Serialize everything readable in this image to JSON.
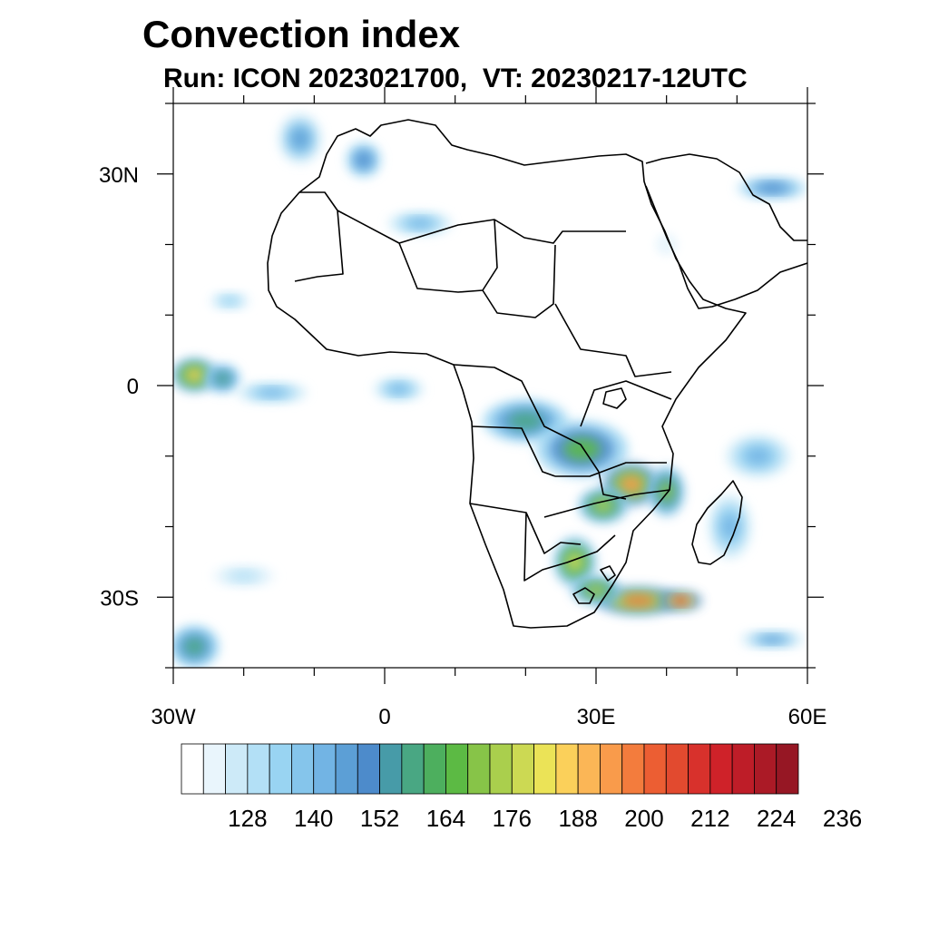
{
  "title": "Convection index",
  "subtitle": "Run: ICON 2023021700,  VT: 20230217-12UTC",
  "map": {
    "projection": "equirectangular",
    "lon_range": [
      -30,
      60
    ],
    "lat_range": [
      -40,
      40
    ],
    "lat_tick_labels": [
      {
        "value": 30,
        "label": "30N"
      },
      {
        "value": 0,
        "label": "0"
      },
      {
        "value": -30,
        "label": "30S"
      }
    ],
    "lon_tick_labels": [
      {
        "value": -30,
        "label": "30W"
      },
      {
        "value": 0,
        "label": "0"
      },
      {
        "value": 30,
        "label": "30E"
      },
      {
        "value": 60,
        "label": "60E"
      }
    ],
    "boundary_color": "#000000",
    "field_name": "convection index",
    "field_regions": [
      {
        "lon": -27,
        "lat": 1.5,
        "rlon": 3.2,
        "rlat": 2.4,
        "level": 0.62
      },
      {
        "lon": -23,
        "lat": 1.0,
        "rlon": 2.5,
        "rlat": 2.0,
        "level": 0.35
      },
      {
        "lon": -16,
        "lat": -1.0,
        "rlon": 5.0,
        "rlat": 1.4,
        "level": 0.2
      },
      {
        "lon": 2,
        "lat": -0.5,
        "rlon": 3.5,
        "rlat": 1.6,
        "level": 0.18
      },
      {
        "lon": -12,
        "lat": 35,
        "rlon": 3.0,
        "rlat": 3.5,
        "level": 0.22
      },
      {
        "lon": -3,
        "lat": 32,
        "rlon": 2.5,
        "rlat": 2.5,
        "level": 0.25
      },
      {
        "lon": 5,
        "lat": 23,
        "rlon": 4.5,
        "rlat": 1.6,
        "level": 0.2
      },
      {
        "lon": 55,
        "lat": 28,
        "rlon": 5.0,
        "rlat": 1.5,
        "level": 0.28
      },
      {
        "lon": -22,
        "lat": 12,
        "rlon": 3.0,
        "rlat": 1.3,
        "level": 0.12
      },
      {
        "lon": 20,
        "lat": -5,
        "rlon": 6.0,
        "rlat": 3.0,
        "level": 0.35
      },
      {
        "lon": 28,
        "lat": -9,
        "rlon": 6.5,
        "rlat": 4.0,
        "level": 0.42
      },
      {
        "lon": 35,
        "lat": -14,
        "rlon": 4.0,
        "rlat": 3.0,
        "level": 0.7
      },
      {
        "lon": 31,
        "lat": -17,
        "rlon": 3.5,
        "rlat": 2.5,
        "level": 0.5
      },
      {
        "lon": 40,
        "lat": -15,
        "rlon": 2.5,
        "rlat": 3.5,
        "level": 0.45
      },
      {
        "lon": 27,
        "lat": -25,
        "rlon": 3.0,
        "rlat": 3.5,
        "level": 0.55
      },
      {
        "lon": 36,
        "lat": -30.5,
        "rlon": 6.0,
        "rlat": 2.0,
        "level": 0.72
      },
      {
        "lon": 42,
        "lat": -30.5,
        "rlon": 3.0,
        "rlat": 1.4,
        "level": 0.85
      },
      {
        "lon": 30,
        "lat": -29,
        "rlon": 3.5,
        "rlat": 2.0,
        "level": 0.5
      },
      {
        "lon": 49,
        "lat": -20,
        "rlon": 3.0,
        "rlat": 4.5,
        "level": 0.2
      },
      {
        "lon": 53,
        "lat": -10,
        "rlon": 4.5,
        "rlat": 3.0,
        "level": 0.2
      },
      {
        "lon": -27,
        "lat": -37,
        "rlon": 3.5,
        "rlat": 3.0,
        "level": 0.35
      },
      {
        "lon": 55,
        "lat": -36,
        "rlon": 4.5,
        "rlat": 1.2,
        "level": 0.22
      },
      {
        "lon": -20,
        "lat": -27,
        "rlon": 4.5,
        "rlat": 1.5,
        "level": 0.08
      },
      {
        "lon": 40,
        "lat": 20,
        "rlon": 1.5,
        "rlat": 1.5,
        "level": 0.0
      }
    ]
  },
  "colorbar": {
    "colors": [
      "#ffffff",
      "#e9f5fc",
      "#cdeaf8",
      "#b3e0f6",
      "#99d4f2",
      "#85c5eb",
      "#72b4e4",
      "#5c9fd6",
      "#4d8bcb",
      "#479ba8",
      "#49a783",
      "#4daf5e",
      "#5cba44",
      "#87c448",
      "#aacf4d",
      "#ccd953",
      "#ebe357",
      "#fbd05a",
      "#fbb656",
      "#f99b4b",
      "#f37c3d",
      "#ec5e33",
      "#e24a2f",
      "#d8312c",
      "#cf2229",
      "#be1d28",
      "#ab1a26",
      "#961724"
    ],
    "labels": [
      "128",
      "140",
      "152",
      "164",
      "176",
      "188",
      "200",
      "212",
      "224",
      "236"
    ]
  }
}
